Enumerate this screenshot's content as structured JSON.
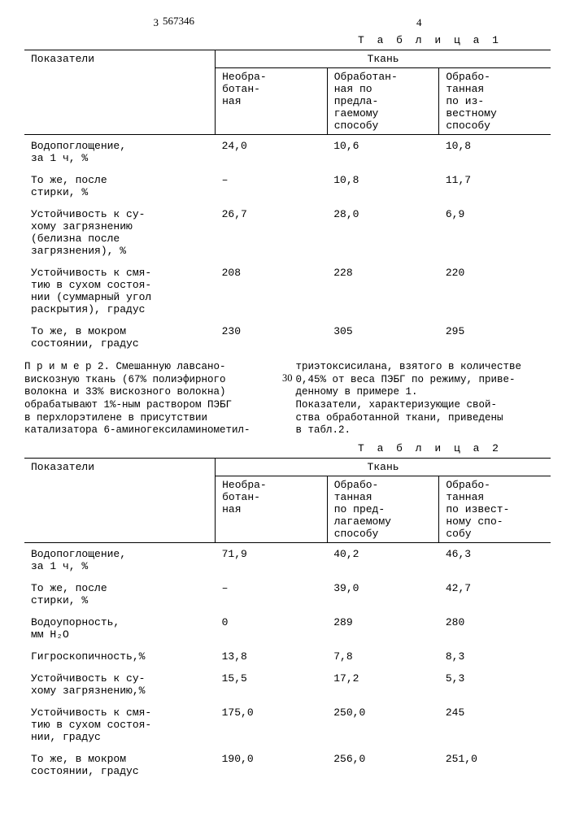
{
  "header": {
    "left_page": "3",
    "patent": "567346",
    "right_page": "4"
  },
  "table1": {
    "caption": "Т а б л и ц а 1",
    "h_indicator": "Показатели",
    "h_super": "Ткань",
    "h_c1": "Необра-\nботан-\nная",
    "h_c2": "Обработан-\nная по\nпредла-\nгаемому\nспособу",
    "h_c3": "Обрабо-\nтанная\nпо из-\nвестному\nспособу",
    "rows": [
      {
        "label": "Водопоглощение,\nза 1 ч, %",
        "c1": "24,0",
        "c2": "10,6",
        "c3": "10,8"
      },
      {
        "label": "То же, после\nстирки, %",
        "c1": "–",
        "c2": "10,8",
        "c3": "11,7"
      },
      {
        "label": "Устойчивость к су-\nхому загрязнению\n(белизна после\nзагрязнения), %",
        "c1": "26,7",
        "c2": "28,0",
        "c3": "6,9"
      },
      {
        "label": "Устойчивость к смя-\nтию в сухом состоя-\nнии (суммарный угол\nраскрытия), градус",
        "c1": "208",
        "c2": "228",
        "c3": "220"
      },
      {
        "label": "То же, в мокром\nсостоянии, градус",
        "c1": "230",
        "c2": "305",
        "c3": "295"
      }
    ]
  },
  "para": {
    "line_no": "30",
    "left": "П р и м е р  2. Смешанную лавсано-\nвискозную ткань (67% полиэфирного\nволокна и 33% вискозного волокна)\nобрабатывают 1%-ным раствором ПЭБГ\nв перхлорэтилене в присутствии\nкатализатора 6-аминогексиламинометил-",
    "right": "триэтоксисилана, взятого в количестве\n0,45% от веса ПЭБГ по режиму, приве-\nденному в примере 1.\n   Показатели, характеризующие свой-\nства обработанной ткани, приведены\nв табл.2."
  },
  "table2": {
    "caption": "Т а б л и ц а 2",
    "h_indicator": "Показатели",
    "h_super": "Ткань",
    "h_c1": "Необра-\nботан-\nная",
    "h_c2": "Обрабо-\nтанная\nпо пред-\nлагаемому\nспособу",
    "h_c3": "Обрабо-\nтанная\nпо извест-\nному спо-\nсобу",
    "rows": [
      {
        "label": "Водопоглощение,\nза 1 ч, %",
        "c1": "71,9",
        "c2": "40,2",
        "c3": "46,3"
      },
      {
        "label": "То же, после\nстирки, %",
        "c1": "–",
        "c2": "39,0",
        "c3": "42,7"
      },
      {
        "label": "Водоупорность,\nмм H₂O",
        "c1": "0",
        "c2": "289",
        "c3": "280"
      },
      {
        "label": "Гигроскопичность,%",
        "c1": "13,8",
        "c2": "7,8",
        "c3": "8,3"
      },
      {
        "label": "Устойчивость к су-\nхому загрязнению,%",
        "c1": "15,5",
        "c2": "17,2",
        "c3": "5,3"
      },
      {
        "label": "Устойчивость к смя-\nтию в сухом состоя-\nнии, градус",
        "c1": "175,0",
        "c2": "250,0",
        "c3": "245"
      },
      {
        "label": "То же, в мокром\nсостоянии, градус",
        "c1": "190,0",
        "c2": "256,0",
        "c3": "251,0"
      }
    ]
  }
}
